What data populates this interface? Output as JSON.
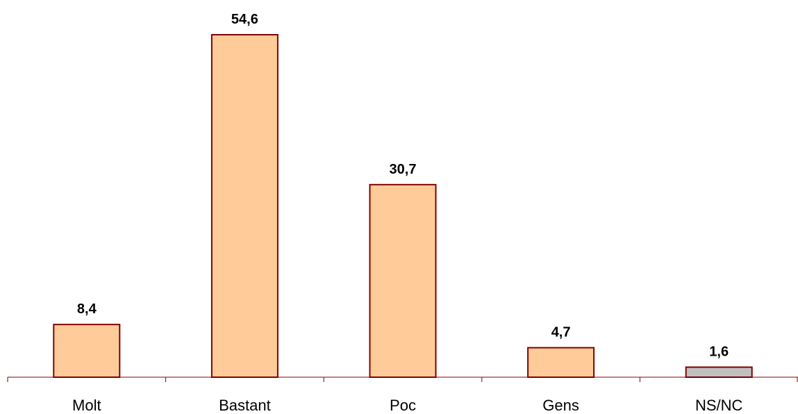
{
  "chart_data": {
    "type": "bar",
    "title": "",
    "xlabel": "",
    "ylabel": "",
    "categories": [
      "Molt",
      "Bastant",
      "Poc",
      "Gens",
      "NS/NC"
    ],
    "values": [
      8.4,
      54.6,
      30.7,
      4.7,
      1.6
    ],
    "value_labels": [
      "8,4",
      "54,6",
      "30,7",
      "4,7",
      "1,6"
    ],
    "ylim": [
      0,
      57
    ],
    "grid": false,
    "legend": "none",
    "bar_colors": [
      "#FFCC99",
      "#FFCC99",
      "#FFCC99",
      "#FFCC99",
      "#C0C0C0"
    ],
    "bar_edge_color": "#800000",
    "axis_color": "#800000"
  }
}
